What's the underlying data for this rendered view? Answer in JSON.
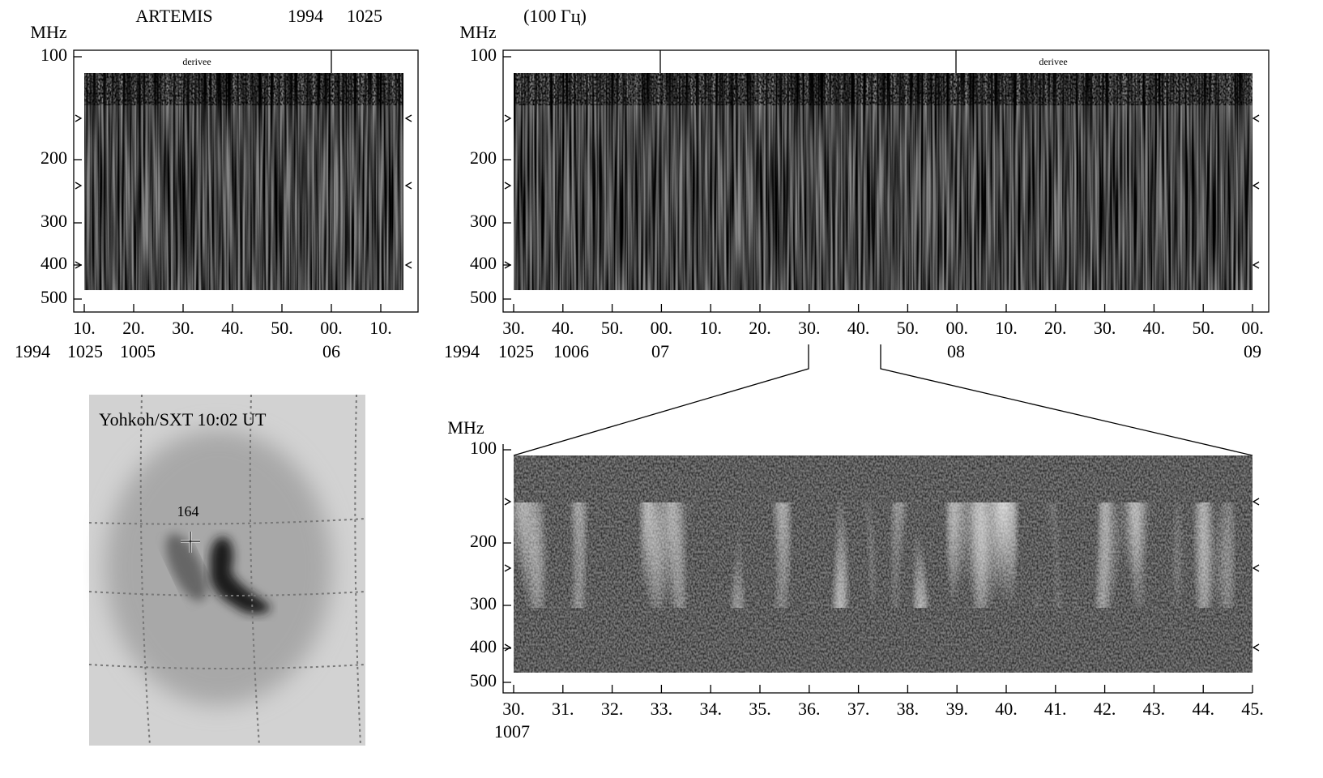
{
  "panel_a": {
    "title": "ARTEMIS",
    "year": "1994",
    "time": "1025",
    "y_unit": "MHz",
    "note": "derivee",
    "yticks": [
      "100",
      "200",
      "300",
      "400",
      "500"
    ],
    "xticks": [
      "10.",
      "20.",
      "30.",
      "40.",
      "50.",
      "00.",
      "10."
    ],
    "x_row2": [
      "1994",
      "1025",
      "1005",
      "06"
    ]
  },
  "panel_b": {
    "title": "(100 Гц)",
    "y_unit": "MHz",
    "note": "derivee",
    "yticks": [
      "100",
      "200",
      "300",
      "400",
      "500"
    ],
    "xticks": [
      "30.",
      "40.",
      "50.",
      "00.",
      "10.",
      "20.",
      "30.",
      "40.",
      "50.",
      "00.",
      "10.",
      "20.",
      "30.",
      "40.",
      "50.",
      "00."
    ],
    "x_row2": [
      "1994",
      "1025",
      "1006",
      "07",
      "08",
      "09"
    ]
  },
  "panel_c": {
    "y_unit": "MHz",
    "yticks": [
      "100",
      "200",
      "300",
      "400",
      "500"
    ],
    "xticks": [
      "30.",
      "31.",
      "32.",
      "33.",
      "34.",
      "35.",
      "36.",
      "37.",
      "38.",
      "39.",
      "40.",
      "41.",
      "42.",
      "43.",
      "44.",
      "45."
    ],
    "x_row2": [
      "1007"
    ]
  },
  "panel_d": {
    "title": "Yohkoh/SXT  10:02 UT",
    "marker": "164"
  }
}
